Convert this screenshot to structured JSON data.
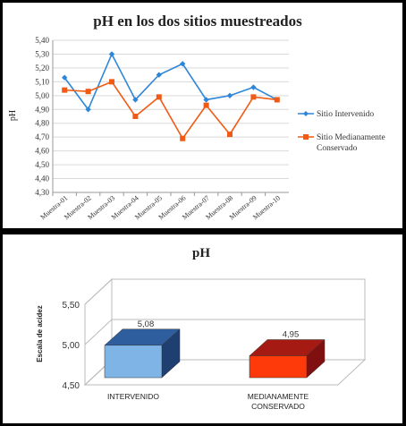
{
  "chart_data": [
    {
      "type": "line",
      "title": "pH en los dos sitios muestreados",
      "ylabel": "pH",
      "xlabel": "",
      "categories": [
        "Muestra-01",
        "Muestra-02",
        "Muestra-03",
        "Muestra-04",
        "Muestra-05",
        "Muestra-06",
        "Muestra-07",
        "Muestra-08",
        "Muestra-09",
        "Muestra-10"
      ],
      "ylim": [
        4.3,
        5.4
      ],
      "yticks": [
        "4,30",
        "4,40",
        "4,50",
        "4,60",
        "4,70",
        "4,80",
        "4,90",
        "5,00",
        "5,10",
        "5,20",
        "5,30",
        "5,40"
      ],
      "grid": true,
      "legend": "right",
      "series": [
        {
          "name": "Sitio Intervenido",
          "color": "#2E86D8",
          "values": [
            5.13,
            4.9,
            5.3,
            4.97,
            5.15,
            5.23,
            4.97,
            5.0,
            5.06,
            4.97
          ]
        },
        {
          "name_lines": [
            "Sitio Medianamente",
            "Conservado"
          ],
          "color": "#F05A14",
          "values": [
            5.04,
            5.03,
            5.1,
            4.85,
            4.99,
            4.69,
            4.93,
            4.72,
            4.99,
            4.97
          ]
        }
      ]
    },
    {
      "type": "bar",
      "title": "pH",
      "ylabel": "Escala de acidez",
      "xlabel": "",
      "ylim": [
        4.5,
        5.5
      ],
      "yticks": [
        "4,50",
        "5,00",
        "5,50"
      ],
      "categories": [
        {
          "lines": [
            "INTERVENIDO"
          ]
        },
        {
          "lines": [
            "MEDIANAMENTE",
            "CONSERVADO"
          ]
        }
      ],
      "values": [
        5.08,
        4.95
      ],
      "data_labels": [
        "5,08",
        "4,95"
      ],
      "colors": [
        {
          "front": "#7FB4E6",
          "side": "#1F3F70",
          "top": "#2F5E9E"
        },
        {
          "front": "#FF3A0A",
          "side": "#801010",
          "top": "#A51A12"
        }
      ]
    }
  ]
}
